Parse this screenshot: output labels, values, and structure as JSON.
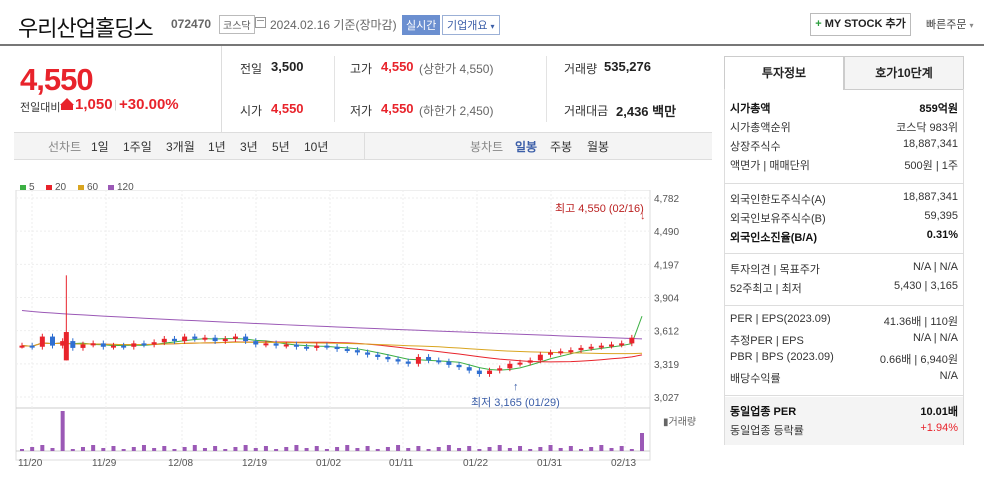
{
  "header": {
    "name": "우리산업홀딩스",
    "code": "072470",
    "market": "코스닥",
    "date_text": "2024.02.16 기준(장마감)",
    "status_badge": "실시간",
    "company_info": "기업개요",
    "mystock_label": "MY STOCK 추가",
    "quick_order": "빠른주문"
  },
  "price": {
    "current": "4,550",
    "change_label": "전일대비",
    "change": "1,050",
    "change_pct": "+30.00%"
  },
  "quote": {
    "prev_label": "전일",
    "prev": "3,500",
    "high_label": "고가",
    "high": "4,550",
    "high_sub": "(상한가 4,550)",
    "volume_label": "거래량",
    "volume": "535,276",
    "open_label": "시가",
    "open": "4,550",
    "low_label": "저가",
    "low": "4,550",
    "low_sub": "(하한가 2,450)",
    "amount_label": "거래대금",
    "amount": "2,436 백만"
  },
  "periods": {
    "label": "선차트",
    "items": [
      "1일",
      "1주일",
      "3개월",
      "1년",
      "3년",
      "5년",
      "10년"
    ],
    "candle_label": "봉차트",
    "candle_items": [
      "일봉",
      "주봉",
      "월봉"
    ]
  },
  "legend": [
    {
      "label": "5",
      "color": "#3cb043"
    },
    {
      "label": "20",
      "color": "#e8232b"
    },
    {
      "label": "60",
      "color": "#d9a520"
    },
    {
      "label": "120",
      "color": "#9b59b6"
    }
  ],
  "chart_data": {
    "type": "candlestick",
    "y_ticks": [
      "4,782",
      "4,490",
      "4,197",
      "3,904",
      "3,612",
      "3,319",
      "3,027"
    ],
    "ylim": [
      3027,
      4782
    ],
    "x_ticks": [
      "11/20",
      "11/29",
      "12/08",
      "12/19",
      "01/02",
      "01/11",
      "01/22",
      "01/31",
      "02/13"
    ],
    "max_annotation": "최고 4,550 (02/16)",
    "min_annotation": "최저 3,165 (01/29)",
    "volume_label": "거래량",
    "ma120_start": 3790,
    "ma120_end": 3540,
    "close_last": 4550
  },
  "right_panel": {
    "tab_active": "투자정보",
    "tab_other": "호가10단계",
    "rows1": [
      {
        "k": "시가총액",
        "v": "859억원",
        "bold": true
      },
      {
        "k": "시가총액순위",
        "v": "코스닥 983위"
      },
      {
        "k": "상장주식수",
        "v": "18,887,341"
      },
      {
        "k": "액면가 | 매매단위",
        "v": "500원 | 1주"
      }
    ],
    "rows2": [
      {
        "k": "외국인한도주식수(A)",
        "v": "18,887,341"
      },
      {
        "k": "외국인보유주식수(B)",
        "v": "59,395"
      },
      {
        "k": "외국인소진율(B/A)",
        "v": "0.31%",
        "bold": true
      }
    ],
    "rows3": [
      {
        "k": "투자의견 | 목표주가",
        "v": "N/A | N/A"
      },
      {
        "k": "52주최고 | 최저",
        "v": "5,430 | 3,165"
      }
    ],
    "rows4": [
      {
        "k": "PER | EPS(2023.09)",
        "v": "41.36배 | 110원"
      },
      {
        "k": "추정PER | EPS",
        "v": "N/A | N/A"
      },
      {
        "k": "PBR | BPS (2023.09)",
        "v": "0.66배 | 6,940원"
      },
      {
        "k": "배당수익률",
        "v": "N/A"
      }
    ],
    "rows5": [
      {
        "k": "동일업종 PER",
        "v": "10.01배",
        "bold": true
      },
      {
        "k": "동일업종 등락률",
        "v": "+1.94%"
      }
    ]
  }
}
